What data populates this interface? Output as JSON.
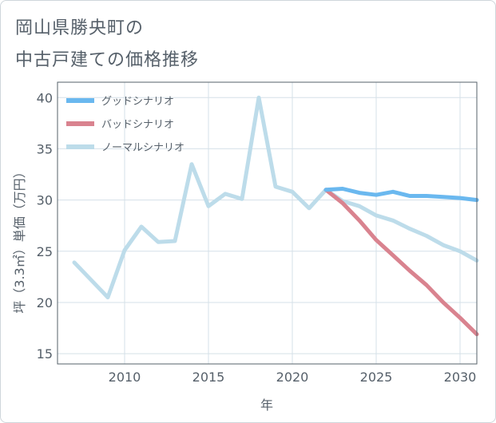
{
  "header": {
    "title_line1": "岡山県勝央町の",
    "title_line2": "中古戸建ての価格推移"
  },
  "colors": {
    "good": "#6ab8ef",
    "bad": "#d9838f",
    "normal": "#bddcea",
    "axis_text": "#56606a",
    "grid": "#d5e0e8",
    "frame": "#56606a"
  },
  "chart_data": {
    "type": "line",
    "title": "",
    "xlabel": "年",
    "ylabel": "坪（3.3㎡）単価（万円）",
    "xlim": [
      2006,
      2031
    ],
    "ylim": [
      14,
      41.5
    ],
    "x_ticks": [
      2010,
      2015,
      2020,
      2025,
      2030
    ],
    "y_ticks": [
      15,
      20,
      25,
      30,
      35,
      40
    ],
    "grid": true,
    "legend_position": "top-left",
    "series": [
      {
        "key": "good",
        "name": "グッドシナリオ",
        "x": [
          2022,
          2023,
          2024,
          2025,
          2026,
          2027,
          2028,
          2029,
          2030,
          2031
        ],
        "values": [
          31.0,
          31.1,
          30.7,
          30.5,
          30.8,
          30.4,
          30.4,
          30.3,
          30.2,
          30.0
        ]
      },
      {
        "key": "bad",
        "name": "バッドシナリオ",
        "x": [
          2022,
          2023,
          2024,
          2025,
          2026,
          2027,
          2028,
          2029,
          2030,
          2031
        ],
        "values": [
          31.0,
          29.7,
          28.0,
          26.1,
          24.6,
          23.1,
          21.7,
          20.0,
          18.5,
          16.9
        ]
      },
      {
        "key": "normal",
        "name": "ノーマルシナリオ",
        "x": [
          2007,
          2008,
          2009,
          2010,
          2011,
          2012,
          2013,
          2014,
          2015,
          2016,
          2017,
          2018,
          2019,
          2020,
          2021,
          2022,
          2023,
          2024,
          2025,
          2026,
          2027,
          2028,
          2029,
          2030,
          2031
        ],
        "values": [
          23.9,
          22.2,
          20.5,
          25.1,
          27.4,
          25.9,
          26.0,
          33.5,
          29.4,
          30.6,
          30.1,
          40.0,
          31.3,
          30.8,
          29.2,
          31.0,
          29.9,
          29.4,
          28.5,
          28.0,
          27.2,
          26.5,
          25.6,
          25.0,
          24.1
        ]
      }
    ]
  }
}
